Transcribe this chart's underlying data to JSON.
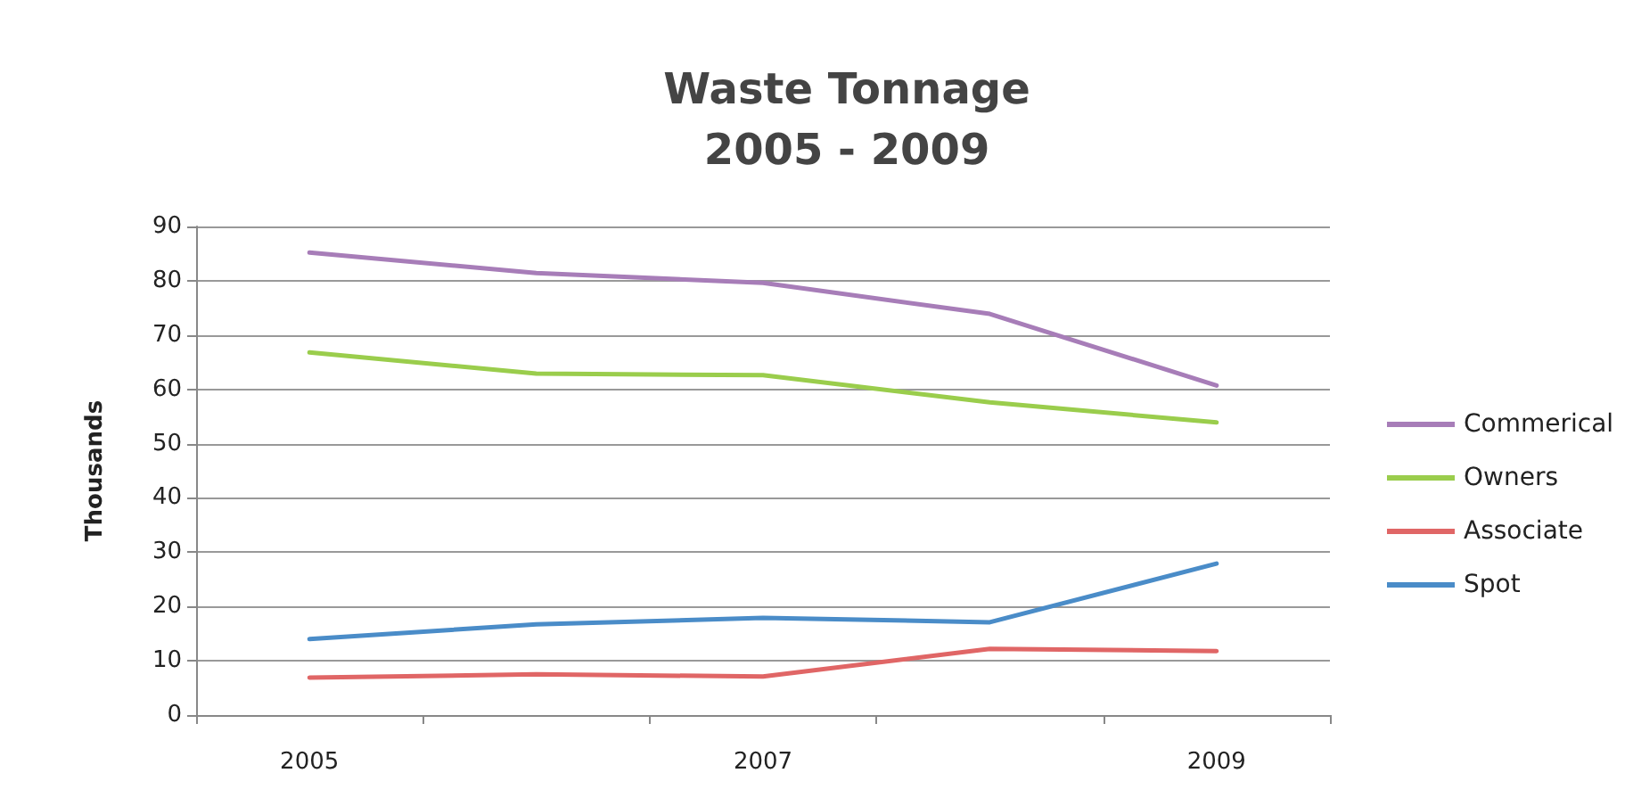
{
  "chart_data": {
    "type": "line",
    "title": "Waste Tonnage\n2005 - 2009",
    "ylabel": "Thousands",
    "categories": [
      "2005",
      null,
      "2007",
      null,
      "2009"
    ],
    "series": [
      {
        "name": "Commerical",
        "color": "#a77db8",
        "values": [
          85.2,
          81.4,
          79.6,
          73.9,
          60.7
        ]
      },
      {
        "name": "Owners",
        "color": "#9acd4c",
        "values": [
          66.8,
          62.9,
          62.6,
          57.6,
          53.9
        ]
      },
      {
        "name": "Associate",
        "color": "#e06666",
        "values": [
          6.9,
          7.5,
          7.1,
          12.2,
          11.8
        ]
      },
      {
        "name": "Spot",
        "color": "#4a8cc8",
        "values": [
          14,
          16.7,
          17.9,
          17.1,
          27.9
        ]
      }
    ],
    "ylim": [
      0,
      90
    ],
    "yticks": [
      0,
      10,
      20,
      30,
      40,
      50,
      60,
      70,
      80,
      90
    ],
    "grid": "y",
    "legend": "right",
    "marker": "none",
    "line_style": "solid"
  }
}
